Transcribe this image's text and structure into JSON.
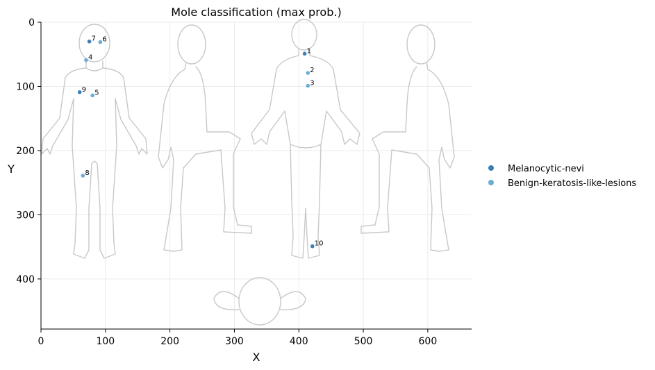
{
  "chart_data": {
    "type": "scatter",
    "title": "Mole classification (max prob.)",
    "xlabel": "X",
    "ylabel": "Y",
    "xlim": [
      0,
      668
    ],
    "ylim": [
      478,
      0
    ],
    "x_ticks": [
      0,
      100,
      200,
      300,
      400,
      500,
      600
    ],
    "y_ticks": [
      0,
      100,
      200,
      300,
      400
    ],
    "grid": true,
    "legend_position": "right",
    "series": [
      {
        "name": "Melanocytic-nevi",
        "color": "#3a7fb8",
        "points": [
          {
            "id": "1",
            "x": 409,
            "y": 49
          },
          {
            "id": "7",
            "x": 75,
            "y": 30
          },
          {
            "id": "9",
            "x": 60,
            "y": 109
          },
          {
            "id": "10",
            "x": 421,
            "y": 349
          }
        ]
      },
      {
        "name": "Benign-keratosis-like-lesions",
        "color": "#6aaed6",
        "points": [
          {
            "id": "2",
            "x": 414,
            "y": 79
          },
          {
            "id": "3",
            "x": 414,
            "y": 99
          },
          {
            "id": "4",
            "x": 70,
            "y": 59
          },
          {
            "id": "5",
            "x": 80,
            "y": 114
          },
          {
            "id": "6",
            "x": 92,
            "y": 31
          },
          {
            "id": "8",
            "x": 65,
            "y": 239
          }
        ]
      }
    ]
  }
}
